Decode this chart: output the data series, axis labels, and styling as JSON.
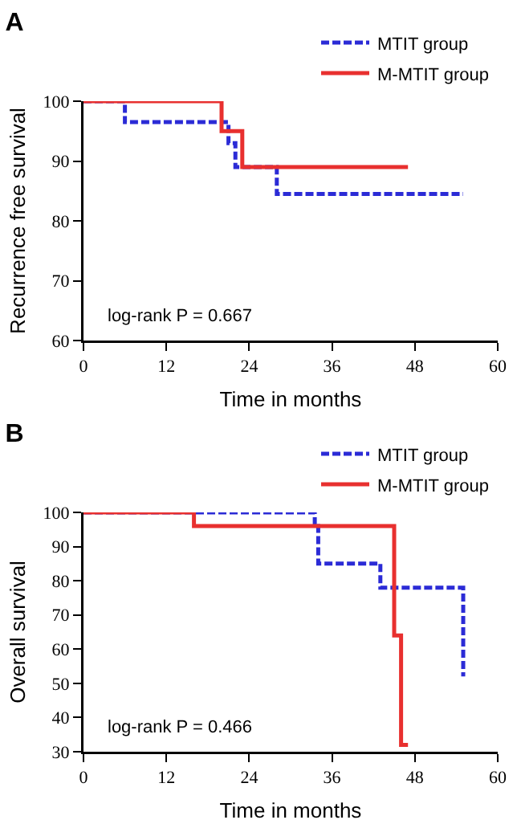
{
  "chart_data": [
    {
      "type": "step",
      "title": "A",
      "xlabel": "Time in months",
      "ylabel": "Recurrence free survival",
      "xlim": [
        0,
        60
      ],
      "xticks": [
        0,
        12,
        24,
        36,
        48,
        60
      ],
      "ylim": [
        60,
        100
      ],
      "yticks": [
        60,
        70,
        80,
        90,
        100
      ],
      "grid": false,
      "legend": "top right",
      "annotations": [
        "log-rank P = 0.667"
      ],
      "series": [
        {
          "name": "MTIT group",
          "color": "#2b2bd6",
          "line_style": "dashed",
          "x": [
            0,
            6,
            21,
            22,
            28,
            55
          ],
          "values": [
            100,
            96.5,
            93,
            89,
            84.5,
            84.5
          ]
        },
        {
          "name": "M-MTIT group",
          "color": "#e8302f",
          "line_style": "solid",
          "x": [
            0,
            20,
            23,
            47
          ],
          "values": [
            100,
            95,
            89,
            89
          ]
        }
      ]
    },
    {
      "type": "step",
      "title": "B",
      "xlabel": "Time in months",
      "ylabel": "Overall survival",
      "xlim": [
        0,
        60
      ],
      "xticks": [
        0,
        12,
        24,
        36,
        48,
        60
      ],
      "ylim": [
        30,
        100
      ],
      "yticks": [
        30,
        40,
        50,
        60,
        70,
        80,
        90,
        100
      ],
      "grid": false,
      "legend": "top right",
      "annotations": [
        "log-rank P = 0.466"
      ],
      "series": [
        {
          "name": "MTIT group",
          "color": "#2b2bd6",
          "line_style": "dashed",
          "x": [
            0,
            33.5,
            34,
            43,
            55,
            55
          ],
          "values": [
            100,
            96,
            85,
            78,
            78,
            52
          ]
        },
        {
          "name": "M-MTIT group",
          "color": "#e8302f",
          "line_style": "solid",
          "x": [
            0,
            16,
            45,
            46,
            47
          ],
          "values": [
            100,
            96,
            64,
            32,
            32
          ]
        }
      ]
    }
  ]
}
